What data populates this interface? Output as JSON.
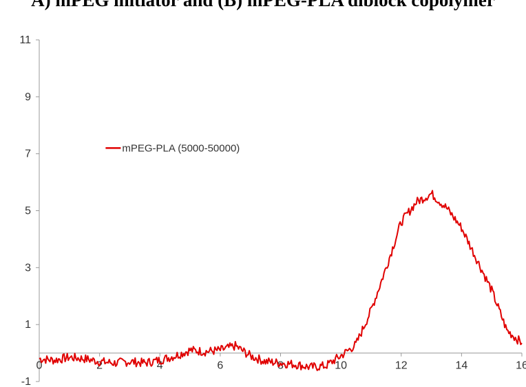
{
  "caption": "A) mPEG initiator and (B) mPEG-PLA diblock copolymer",
  "chart_data": {
    "type": "line",
    "title": "",
    "xlabel": "",
    "ylabel": "",
    "xlim": [
      0,
      16
    ],
    "ylim": [
      -1,
      11
    ],
    "x_ticks": [
      "0",
      "2",
      "4",
      "6",
      "8",
      "10",
      "12",
      "14",
      "16"
    ],
    "y_ticks": [
      "-1",
      "1",
      "3",
      "5",
      "7",
      "9",
      "11"
    ],
    "grid": false,
    "legend_position": "upper-left",
    "series": [
      {
        "name": "mPEG-PLA (5000-50000)",
        "color": "#e00000",
        "x": [
          0,
          0.5,
          1,
          1.5,
          2,
          2.5,
          3,
          3.5,
          4,
          4.5,
          5,
          5.5,
          6,
          6.5,
          7,
          7.5,
          8,
          8.5,
          9,
          9.5,
          10,
          10.5,
          11,
          11.5,
          12,
          12.5,
          13,
          13.5,
          14,
          14.5,
          15,
          15.5,
          16
        ],
        "y": [
          -0.2,
          -0.25,
          -0.15,
          -0.2,
          -0.3,
          -0.35,
          -0.3,
          -0.35,
          -0.25,
          -0.1,
          0.1,
          0.05,
          0.1,
          0.25,
          -0.1,
          -0.3,
          -0.35,
          -0.4,
          -0.5,
          -0.45,
          -0.1,
          0.3,
          1.5,
          3.0,
          4.6,
          5.3,
          5.6,
          5.1,
          4.4,
          3.3,
          2.2,
          0.8,
          0.35
        ]
      }
    ]
  }
}
